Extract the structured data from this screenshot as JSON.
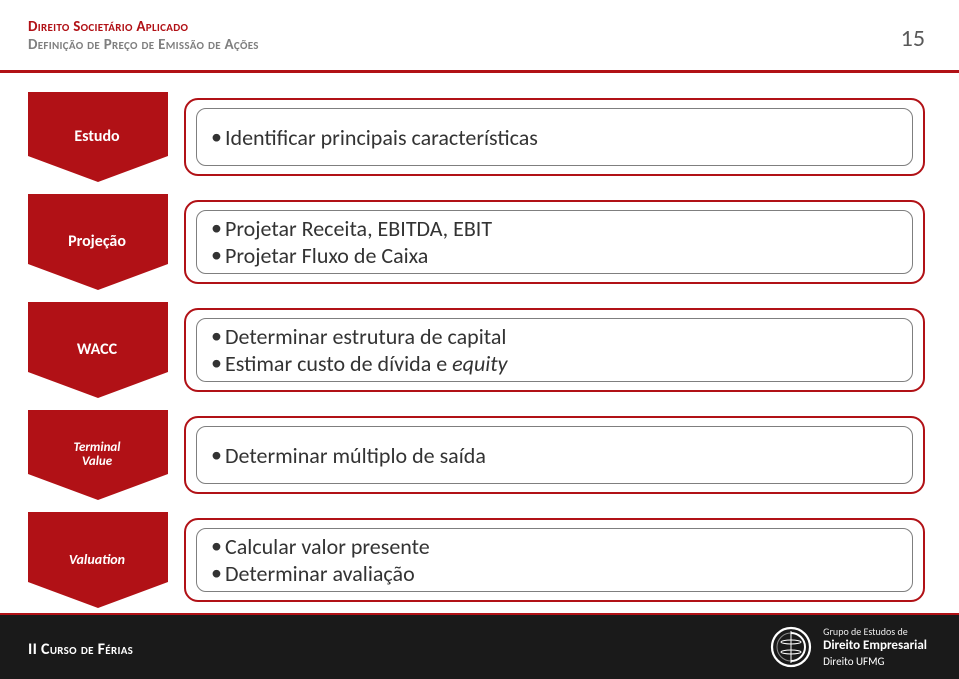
{
  "colors": {
    "accent": "#b11116",
    "chevron": "#b11116",
    "chevron_dark": "#7d0c10",
    "text": "#333333",
    "header_top_color": "#b11116",
    "header_sub_color": "#7f7f7f",
    "page_num_color": "#595959",
    "footer_bg": "#1a1a1a",
    "card_border": "#b11116",
    "inner_border": "#7f7f7f",
    "white": "#ffffff"
  },
  "typography": {
    "header_top_size": 15,
    "header_sub_size": 15,
    "page_num_size": 24,
    "bullet_font_size": 22,
    "chevron_label_default": 16,
    "chevron_label_small": 13,
    "footer_left_size": 16
  },
  "header": {
    "top": "Direito Societário Aplicado",
    "sub": "Definição de Preço de Emissão de Ações",
    "page_number": "15"
  },
  "rows": [
    {
      "label": "Estudo",
      "label_size": "lg",
      "bullets": [
        {
          "text": "Identificar principais características",
          "italic_words": []
        }
      ]
    },
    {
      "label": "Projeção",
      "label_size": "lg",
      "bullets": [
        {
          "text": "Projetar Receita, EBITDA, EBIT",
          "italic_words": []
        },
        {
          "text": "Projetar Fluxo de Caixa",
          "italic_words": []
        }
      ]
    },
    {
      "label": "WACC",
      "label_size": "lg",
      "bullets": [
        {
          "text": "Determinar estrutura de capital",
          "italic_words": []
        },
        {
          "text": "Estimar custo de dívida e equity",
          "italic_words": [
            "equity"
          ]
        }
      ]
    },
    {
      "label": "Terminal Value",
      "label_size": "xs",
      "bullets": [
        {
          "text": "Determinar múltiplo de saída",
          "italic_words": []
        }
      ]
    },
    {
      "label": "Valuation",
      "label_size": "small",
      "bullets": [
        {
          "text": "Calcular valor presente",
          "italic_words": []
        },
        {
          "text": "Determinar avaliação",
          "italic_words": []
        }
      ]
    }
  ],
  "footer": {
    "left": "II Curso de Férias",
    "logo": {
      "line1": "Grupo de Estudos de",
      "line2": "Direito Empresarial",
      "line3": "Direito UFMG"
    }
  }
}
